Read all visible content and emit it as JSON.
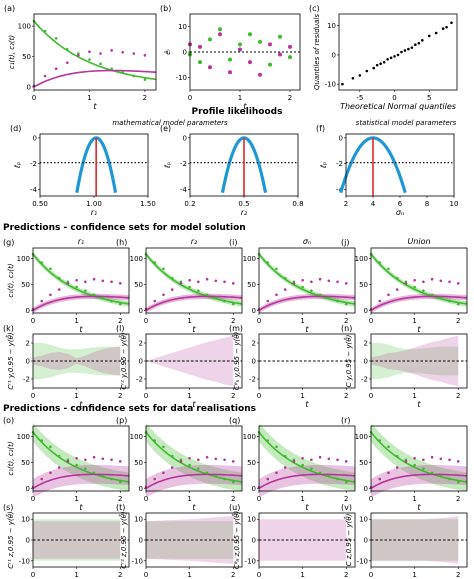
{
  "colors": {
    "green": "#3fba2e",
    "magenta": "#b5359c",
    "blue": "#1f97d2",
    "red": "#e0262a",
    "black": "#000000"
  },
  "headers": {
    "profile": "Profile likelihoods",
    "mechanistic": "mathematical model parameters",
    "statistical": "statistical model parameters",
    "model_pred": "Predictions - confidence sets for model solution",
    "data_pred": "Predictions - confidence sets for data realisations"
  },
  "chart_data": [
    {
      "id": "a",
      "panel": "(a)",
      "type": "line",
      "xlabel": "t",
      "ylabel": "c₁(t), c₂(t)",
      "xticks": [
        "0",
        "1",
        "2"
      ],
      "yticks": [
        "0",
        "50",
        "100"
      ],
      "xlim": [
        0,
        2.2
      ],
      "ylim": [
        -5,
        120
      ],
      "series": [
        {
          "model": "c1",
          "points": [
            [
              0,
              108
            ],
            [
              0.2,
              92
            ],
            [
              0.4,
              80
            ],
            [
              0.6,
              62
            ],
            [
              0.8,
              55
            ],
            [
              1.0,
              45
            ],
            [
              1.2,
              38
            ],
            [
              1.4,
              30
            ],
            [
              1.6,
              24
            ],
            [
              1.8,
              18
            ],
            [
              2.0,
              12
            ]
          ]
        },
        {
          "model": "c2",
          "points": [
            [
              0,
              2
            ],
            [
              0.2,
              18
            ],
            [
              0.4,
              30
            ],
            [
              0.6,
              40
            ],
            [
              0.8,
              52
            ],
            [
              1.0,
              58
            ],
            [
              1.2,
              55
            ],
            [
              1.4,
              60
            ],
            [
              1.6,
              57
            ],
            [
              1.8,
              55
            ],
            [
              2.0,
              52
            ]
          ]
        }
      ]
    },
    {
      "id": "b",
      "panel": "(b)",
      "type": "scatter",
      "xlabel": "t",
      "ylabel": "êᵢ",
      "xticks": [
        "0",
        "1",
        "2"
      ],
      "yticks": [
        "-10",
        "0",
        "10"
      ],
      "xlim": [
        0,
        2.2
      ],
      "ylim": [
        -15,
        15
      ],
      "series": [
        {
          "points": [
            [
              0,
              -1
            ],
            [
              0.2,
              -4
            ],
            [
              0.4,
              5
            ],
            [
              0.6,
              9
            ],
            [
              0.8,
              -3
            ],
            [
              1.0,
              3
            ],
            [
              1.2,
              7
            ],
            [
              1.4,
              4
            ],
            [
              1.6,
              -5
            ],
            [
              1.8,
              6
            ],
            [
              2.0,
              -2
            ]
          ]
        },
        {
          "points": [
            [
              0,
              3
            ],
            [
              0.2,
              2
            ],
            [
              0.4,
              -6
            ],
            [
              0.6,
              7
            ],
            [
              0.8,
              -8
            ],
            [
              1.0,
              1
            ],
            [
              1.2,
              -4
            ],
            [
              1.4,
              -9
            ],
            [
              1.6,
              3
            ],
            [
              1.8,
              -1
            ],
            [
              2.0,
              2
            ]
          ]
        }
      ]
    },
    {
      "id": "c",
      "panel": "(c)",
      "type": "scatter",
      "xlabel": "Theoretical Normal quantiles",
      "ylabel": "Quantiles of residuals",
      "xticks": [
        "-5",
        "0",
        "5"
      ],
      "yticks": [
        "-10",
        "0",
        "10"
      ],
      "xlim": [
        -8,
        9
      ],
      "ylim": [
        -12,
        14
      ],
      "series": [
        {
          "points": [
            [
              -7.5,
              -10
            ],
            [
              -6,
              -8
            ],
            [
              -5,
              -7
            ],
            [
              -4,
              -5.5
            ],
            [
              -3,
              -4.5
            ],
            [
              -2.5,
              -3.5
            ],
            [
              -2,
              -3
            ],
            [
              -1.5,
              -2.5
            ],
            [
              -1,
              -1.5
            ],
            [
              -0.5,
              -1
            ],
            [
              0,
              -0.5
            ],
            [
              0.5,
              0
            ],
            [
              1,
              1
            ],
            [
              1.5,
              1.5
            ],
            [
              2,
              2
            ],
            [
              2.5,
              2.5
            ],
            [
              3,
              3.5
            ],
            [
              3.5,
              4
            ],
            [
              4,
              5
            ],
            [
              5,
              6.5
            ],
            [
              6,
              7.5
            ],
            [
              7,
              9
            ],
            [
              7.5,
              9.5
            ],
            [
              8.2,
              11
            ]
          ]
        }
      ]
    },
    {
      "id": "d",
      "panel": "(d)",
      "type": "line",
      "xlabel": "r₁",
      "ylabel": "ℓ̂ₚ",
      "xticks": [
        "0.50",
        "1.00",
        "1.50"
      ],
      "yticks": [
        "0",
        "-2",
        "-4"
      ],
      "xlim": [
        0.5,
        1.5
      ],
      "ylim": [
        -4.5,
        0.3
      ],
      "profile": {
        "mle": 1.02,
        "halfwidth": 0.12,
        "threshold": -1.92
      }
    },
    {
      "id": "e",
      "panel": "(e)",
      "type": "line",
      "xlabel": "r₂",
      "ylabel": "ℓ̂ₚ",
      "xticks": [
        "0.2",
        "0.5",
        "0.8"
      ],
      "yticks": [
        "0",
        "-2",
        "-4"
      ],
      "xlim": [
        0.2,
        0.8
      ],
      "ylim": [
        -4.5,
        0.3
      ],
      "profile": {
        "mle": 0.5,
        "halfwidth": 0.08,
        "threshold": -1.92
      }
    },
    {
      "id": "f",
      "panel": "(f)",
      "type": "line",
      "xlabel": "σₙ",
      "ylabel": "ℓ̂ₚ",
      "xticks": [
        "2",
        "4",
        "6",
        "8",
        "10"
      ],
      "yticks": [
        "0",
        "-2",
        "-4"
      ],
      "xlim": [
        2,
        10
      ],
      "ylim": [
        -4.5,
        0.3
      ],
      "profile": {
        "mle": 4.0,
        "halfwidth": 1.6,
        "threshold": -1.92
      }
    },
    {
      "id": "g",
      "panel": "(g)",
      "type": "line",
      "title": "r₁",
      "xlabel": "t",
      "ylabel": "c₁(t), c₂(t)",
      "xticks": [
        "0",
        "1",
        "2"
      ],
      "yticks": [
        "0",
        "50",
        "100"
      ],
      "xlim": [
        0,
        2.2
      ],
      "ylim": [
        -5,
        120
      ],
      "band": "model"
    },
    {
      "id": "h",
      "panel": "(h)",
      "type": "line",
      "title": "r₂",
      "xlabel": "t",
      "ylabel": "",
      "xticks": [
        "0",
        "1",
        "2"
      ],
      "yticks": [
        "0",
        "50",
        "100"
      ],
      "xlim": [
        0,
        2.2
      ],
      "ylim": [
        -5,
        120
      ],
      "band": "model"
    },
    {
      "id": "i",
      "panel": "(i)",
      "type": "line",
      "title": "σₙ",
      "xlabel": "t",
      "ylabel": "",
      "xticks": [
        "0",
        "1",
        "2"
      ],
      "yticks": [
        "0",
        "50",
        "100"
      ],
      "xlim": [
        0,
        2.2
      ],
      "ylim": [
        -5,
        120
      ],
      "band": "model"
    },
    {
      "id": "j",
      "panel": "(j)",
      "type": "line",
      "title": "Union",
      "xlabel": "t",
      "ylabel": "",
      "xticks": [
        "0",
        "1",
        "2"
      ],
      "yticks": [
        "0",
        "50",
        "100"
      ],
      "xlim": [
        0,
        2.2
      ],
      "ylim": [
        -5,
        120
      ],
      "band": "model"
    },
    {
      "id": "k",
      "panel": "(k)",
      "type": "area",
      "xlabel": "t",
      "ylabel": "Cʳ¹ y,0.95 − y(θ̂)",
      "xticks": [
        "0",
        "1",
        "2"
      ],
      "yticks": [
        "-2",
        "0",
        "2"
      ],
      "xlim": [
        0,
        2.2
      ],
      "ylim": [
        -3,
        3
      ],
      "bands": [
        {
          "color": "green",
          "w": [
            2.0,
            2.0,
            1.8,
            1.5,
            1.3,
            1.3,
            1.4,
            1.5,
            1.6,
            1.6,
            1.6
          ]
        },
        {
          "color": "magenta",
          "w": [
            0.4,
            0.6,
            0.9,
            1.0,
            0.8,
            0.3,
            0.6,
            1.0,
            1.3,
            1.5,
            1.6
          ]
        }
      ]
    },
    {
      "id": "l",
      "panel": "(l)",
      "type": "area",
      "xlabel": "t",
      "ylabel": "Cʳ² y,0.95 − y(θ̂)",
      "xticks": [
        "0",
        "1",
        "2"
      ],
      "yticks": [
        "-2",
        "0",
        "2"
      ],
      "xlim": [
        0,
        2.2
      ],
      "ylim": [
        -3,
        3
      ],
      "bands": [
        {
          "color": "green",
          "w": [
            0.05,
            0.05,
            0.05,
            0.05,
            0.05,
            0.05,
            0.05,
            0.05,
            0.05,
            0.05,
            0.05
          ]
        },
        {
          "color": "magenta",
          "w": [
            0.0,
            0.3,
            0.6,
            0.9,
            1.2,
            1.5,
            1.8,
            2.1,
            2.3,
            2.6,
            2.8
          ]
        }
      ]
    },
    {
      "id": "m",
      "panel": "(m)",
      "type": "area",
      "xlabel": "t",
      "ylabel": "Cᵠₙ y,0.95 − y(θ̂)",
      "xticks": [
        "0",
        "1",
        "2"
      ],
      "yticks": [
        "-2",
        "0",
        "2"
      ],
      "xlim": [
        0,
        2.2
      ],
      "ylim": [
        -3,
        3
      ],
      "bands": [
        {
          "color": "green",
          "w": [
            0.02,
            0.02,
            0.02,
            0.02,
            0.02,
            0.02,
            0.02,
            0.02,
            0.02,
            0.02,
            0.02
          ]
        }
      ]
    },
    {
      "id": "n",
      "panel": "(n)",
      "type": "area",
      "xlabel": "t",
      "ylabel": "C y,0.95 − y(θ̂)",
      "xticks": [
        "0",
        "1",
        "2"
      ],
      "yticks": [
        "-2",
        "0",
        "2"
      ],
      "xlim": [
        0,
        2.2
      ],
      "ylim": [
        -3,
        3
      ],
      "bands": [
        {
          "color": "green",
          "w": [
            2.0,
            2.0,
            1.8,
            1.5,
            1.3,
            1.3,
            1.4,
            1.5,
            1.6,
            1.6,
            1.6
          ]
        },
        {
          "color": "magenta",
          "w": [
            0.4,
            0.6,
            0.9,
            1.0,
            1.2,
            1.5,
            1.8,
            2.1,
            2.3,
            2.6,
            2.8
          ]
        }
      ]
    },
    {
      "id": "o",
      "panel": "(o)",
      "type": "line",
      "xlabel": "t",
      "ylabel": "c₁(t), c₂(t)",
      "xticks": [
        "0",
        "1",
        "2"
      ],
      "yticks": [
        "0",
        "50",
        "100"
      ],
      "xlim": [
        0,
        2.2
      ],
      "ylim": [
        -5,
        120
      ],
      "band": "data"
    },
    {
      "id": "p",
      "panel": "(p)",
      "type": "line",
      "xlabel": "t",
      "ylabel": "",
      "xticks": [
        "0",
        "1",
        "2"
      ],
      "yticks": [
        "0",
        "50",
        "100"
      ],
      "xlim": [
        0,
        2.2
      ],
      "ylim": [
        -5,
        120
      ],
      "band": "data"
    },
    {
      "id": "q",
      "panel": "(q)",
      "type": "line",
      "xlabel": "t",
      "ylabel": "",
      "xticks": [
        "0",
        "1",
        "2"
      ],
      "yticks": [
        "0",
        "50",
        "100"
      ],
      "xlim": [
        0,
        2.2
      ],
      "ylim": [
        -5,
        120
      ],
      "band": "data"
    },
    {
      "id": "r",
      "panel": "(r)",
      "type": "line",
      "xlabel": "t",
      "ylabel": "",
      "xticks": [
        "0",
        "1",
        "2"
      ],
      "yticks": [
        "0",
        "50",
        "100"
      ],
      "xlim": [
        0,
        2.2
      ],
      "ylim": [
        -5,
        120
      ],
      "band": "data"
    },
    {
      "id": "s",
      "panel": "(s)",
      "type": "area",
      "xlabel": "t",
      "ylabel": "Cʳ¹ z,0.95 − y(θ̂)",
      "xticks": [
        "0",
        "1",
        "2"
      ],
      "yticks": [
        "-10",
        "0",
        "10"
      ],
      "xlim": [
        0,
        2.2
      ],
      "ylim": [
        -13,
        13
      ],
      "bands": [
        {
          "color": "green",
          "w": [
            10,
            10,
            10,
            10,
            10,
            10,
            10,
            10,
            10,
            10,
            10
          ]
        },
        {
          "color": "magenta",
          "w": [
            9,
            9,
            9,
            9,
            9,
            9,
            9,
            9,
            9,
            9,
            9
          ]
        }
      ]
    },
    {
      "id": "t",
      "panel": "(t)",
      "type": "area",
      "xlabel": "t",
      "ylabel": "Cʳ² z,0.95 − y(θ̂)",
      "xticks": [
        "0",
        "1",
        "2"
      ],
      "yticks": [
        "-10",
        "0",
        "10"
      ],
      "xlim": [
        0,
        2.2
      ],
      "ylim": [
        -13,
        13
      ],
      "bands": [
        {
          "color": "green",
          "w": [
            9,
            9,
            9,
            9,
            9,
            9,
            9,
            9,
            9,
            9,
            9
          ]
        },
        {
          "color": "magenta",
          "w": [
            9,
            9.2,
            9.4,
            9.6,
            9.8,
            10,
            10.3,
            10.6,
            10.9,
            11.2,
            11.5
          ]
        }
      ]
    },
    {
      "id": "u",
      "panel": "(u)",
      "type": "area",
      "xlabel": "t",
      "ylabel": "Cᵠₙ z,0.95 − y(θ̂)",
      "xticks": [
        "0",
        "1",
        "2"
      ],
      "yticks": [
        "-10",
        "0",
        "10"
      ],
      "xlim": [
        0,
        2.2
      ],
      "ylim": [
        -13,
        13
      ],
      "bands": [
        {
          "color": "magenta",
          "w": [
            10,
            10,
            10,
            10,
            10,
            10,
            10,
            10,
            10,
            10,
            10
          ]
        }
      ]
    },
    {
      "id": "v",
      "panel": "(v)",
      "type": "area",
      "xlabel": "t",
      "ylabel": "C z,0.95 − y(θ̂)",
      "xticks": [
        "0",
        "1",
        "2"
      ],
      "yticks": [
        "-10",
        "0",
        "10"
      ],
      "xlim": [
        0,
        2.2
      ],
      "ylim": [
        -13,
        13
      ],
      "bands": [
        {
          "color": "green",
          "w": [
            10,
            10,
            10,
            10,
            10,
            10,
            10,
            10,
            10,
            10,
            10
          ]
        },
        {
          "color": "magenta",
          "w": [
            10,
            10,
            10,
            10,
            10,
            10,
            10,
            10.3,
            10.6,
            10.9,
            11.5
          ]
        }
      ]
    }
  ]
}
